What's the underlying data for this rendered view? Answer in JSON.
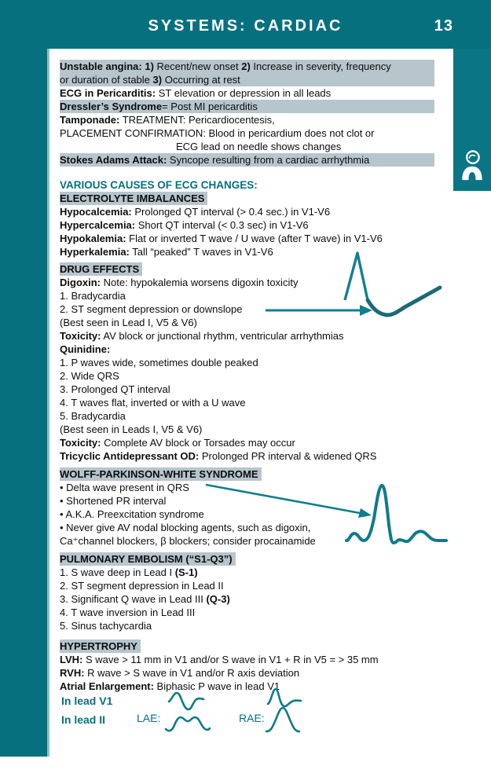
{
  "header": {
    "title": "SYSTEMS: CARDIAC",
    "page_number": "13"
  },
  "side_tab": {
    "icon": "human-figure-icon"
  },
  "colors": {
    "teal": "#06707f",
    "highlight": "#b7c5cd",
    "ecg_stroke": "#0f7a8a",
    "ink": "#0c0c0c"
  },
  "figures": {
    "digoxin_ecg": "ecg-waveform-scooped-st-depression",
    "digoxin_arrow": "arrow-to-st-depression",
    "wpw_ecg": "ecg-waveform-delta-wave",
    "wpw_arrow": "arrow-to-delta-wave",
    "lae_v1": "biphasic-p-wave-lae-lead-v1",
    "rae_v1": "biphasic-p-wave-rae-lead-v1",
    "lae_ii": "double-peaked-p-wave-lae-lead-ii",
    "rae_ii": "tall-peaked-p-wave-rae-lead-ii"
  },
  "bottom": {
    "lead_v1_label": "In lead V1",
    "lead_ii_label": "In lead II",
    "lae_label": "LAE:",
    "rae_label": "RAE:"
  },
  "content": {
    "blocks": [
      {
        "hl": true,
        "seg": [
          {
            "t": "Unstable angina: 1)",
            "b": true
          },
          {
            "t": " Recent/new onset "
          },
          {
            "t": "2)",
            "b": true
          },
          {
            "t": " Increase in severity, frequency"
          }
        ]
      },
      {
        "hl": true,
        "seg": [
          {
            "t": "or duration of stable "
          },
          {
            "t": "3)",
            "b": true
          },
          {
            "t": " Occurring at rest"
          }
        ]
      },
      {
        "seg": [
          {
            "t": "ECG in Pericarditis:",
            "b": true
          },
          {
            "t": " ST elevation or depression in all leads"
          }
        ]
      },
      {
        "hl": true,
        "seg": [
          {
            "t": "Dressler’s Syndrome",
            "b": true
          },
          {
            "t": "= Post MI pericarditis"
          }
        ]
      },
      {
        "seg": [
          {
            "t": "Tamponade:",
            "b": true
          },
          {
            "t": " TREATMENT: Pericardiocentesis,"
          }
        ]
      },
      {
        "seg": [
          {
            "t": "PLACEMENT CONFIRMATION: Blood in pericardium does not clot or"
          }
        ]
      },
      {
        "indent": 148,
        "seg": [
          {
            "t": "ECG lead on needle shows changes"
          }
        ]
      },
      {
        "hl": true,
        "seg": [
          {
            "t": "Stokes Adams Attack:",
            "b": true
          },
          {
            "t": " Syncope resulting from a cardiac arrhythmia"
          }
        ]
      },
      {
        "type": "spacer",
        "h": 15
      },
      {
        "seg": [
          {
            "t": "VARIOUS CAUSES OF ECG CHANGES:",
            "b": true,
            "c": "teal"
          }
        ]
      },
      {
        "seg": [
          {
            "t": "ELECTROLYTE IMBALANCES",
            "b": true,
            "hl": true
          }
        ]
      },
      {
        "seg": [
          {
            "t": "Hypocalcemia:",
            "b": true
          },
          {
            "t": " Prolonged QT interval (> 0.4 sec.) in V1-V6"
          }
        ]
      },
      {
        "seg": [
          {
            "t": "Hypercalcemia:",
            "b": true
          },
          {
            "t": " Short QT interval (< 0.3 sec) in V1-V6"
          }
        ]
      },
      {
        "seg": [
          {
            "t": "Hypokalemia:",
            "b": true
          },
          {
            "t": " Flat or inverted T wave / U wave (after T wave) in V1-V6"
          }
        ]
      },
      {
        "seg": [
          {
            "t": "Hyperkalemia:",
            "b": true
          },
          {
            "t": " Tall “peaked” T waves in V1-V6"
          }
        ]
      },
      {
        "type": "spacer",
        "h": 5
      },
      {
        "seg": [
          {
            "t": "DRUG EFFECTS",
            "b": true,
            "hl": true
          }
        ]
      },
      {
        "seg": [
          {
            "t": "Digoxin:",
            "b": true
          },
          {
            "t": " Note: hypokalemia worsens digoxin toxicity"
          }
        ]
      },
      {
        "seg": [
          {
            "t": "1. Bradycardia"
          }
        ]
      },
      {
        "seg": [
          {
            "t": "2. ST segment depression or downslope"
          }
        ]
      },
      {
        "seg": [
          {
            "t": "(Best seen in Lead I, V5 & V6)"
          }
        ]
      },
      {
        "seg": [
          {
            "t": "Toxicity:",
            "b": true
          },
          {
            "t": " AV block or junctional rhythm, ventricular arrhythmias"
          }
        ]
      },
      {
        "seg": [
          {
            "t": "Quinidine:",
            "b": true
          }
        ]
      },
      {
        "seg": [
          {
            "t": "1. P waves wide, sometimes double peaked"
          }
        ]
      },
      {
        "seg": [
          {
            "t": "2. Wide QRS"
          }
        ]
      },
      {
        "seg": [
          {
            "t": "3. Prolonged QT interval"
          }
        ]
      },
      {
        "seg": [
          {
            "t": "4. T waves flat, inverted or with a U wave"
          }
        ]
      },
      {
        "seg": [
          {
            "t": "5. Bradycardia"
          }
        ]
      },
      {
        "seg": [
          {
            "t": "(Best seen in Leads I, V5 & V6)"
          }
        ]
      },
      {
        "seg": [
          {
            "t": "Toxicity:",
            "b": true
          },
          {
            "t": " Complete AV block or Torsades may occur"
          }
        ]
      },
      {
        "seg": [
          {
            "t": "Tricyclic Antidepressant OD:",
            "b": true
          },
          {
            "t": " Prolonged PR interval & widened QRS"
          }
        ]
      },
      {
        "type": "spacer",
        "h": 6
      },
      {
        "seg": [
          {
            "t": "WOLFF-PARKINSON-WHITE SYNDROME",
            "b": true,
            "hl": true
          }
        ]
      },
      {
        "seg": [
          {
            "t": "• Delta wave present in QRS"
          }
        ]
      },
      {
        "seg": [
          {
            "t": "• Shortened PR interval"
          }
        ]
      },
      {
        "seg": [
          {
            "t": "• A.K.A. Preexcitation syndrome"
          }
        ]
      },
      {
        "seg": [
          {
            "t": "• Never give AV nodal blocking agents, such as digoxin,"
          }
        ]
      },
      {
        "seg": [
          {
            "t": "Ca⁺channel blockers, β blockers; consider procainamide"
          }
        ]
      },
      {
        "type": "spacer",
        "h": 6
      },
      {
        "seg": [
          {
            "t": "PULMONARY EMBOLISM (“S1-Q3”)",
            "b": true,
            "hl": true
          }
        ]
      },
      {
        "seg": [
          {
            "t": "1. S wave deep in Lead I "
          },
          {
            "t": "(S-1)",
            "b": true
          }
        ]
      },
      {
        "seg": [
          {
            "t": "2. ST segment depression in Lead II"
          }
        ]
      },
      {
        "seg": [
          {
            "t": "3. Significant Q wave in Lead III "
          },
          {
            "t": "(Q-3)",
            "b": true
          }
        ]
      },
      {
        "seg": [
          {
            "t": "4. T wave inversion in Lead III"
          }
        ]
      },
      {
        "seg": [
          {
            "t": "5. Sinus tachycardia"
          }
        ]
      },
      {
        "type": "spacer",
        "h": 9
      },
      {
        "seg": [
          {
            "t": "HYPERTROPHY",
            "b": true,
            "hl": true
          }
        ]
      },
      {
        "seg": [
          {
            "t": "LVH:",
            "b": true
          },
          {
            "t": " S wave > 11 mm in V1 and/or S wave in V1 + R in V5 = > 35 mm"
          }
        ]
      },
      {
        "seg": [
          {
            "t": "RVH:",
            "b": true
          },
          {
            "t": " R wave > S wave in V1 and/or R axis deviation"
          }
        ]
      },
      {
        "seg": [
          {
            "t": "Atrial Enlargement:",
            "b": true
          },
          {
            "t": " Biphasic P wave in lead V1"
          }
        ]
      }
    ]
  }
}
